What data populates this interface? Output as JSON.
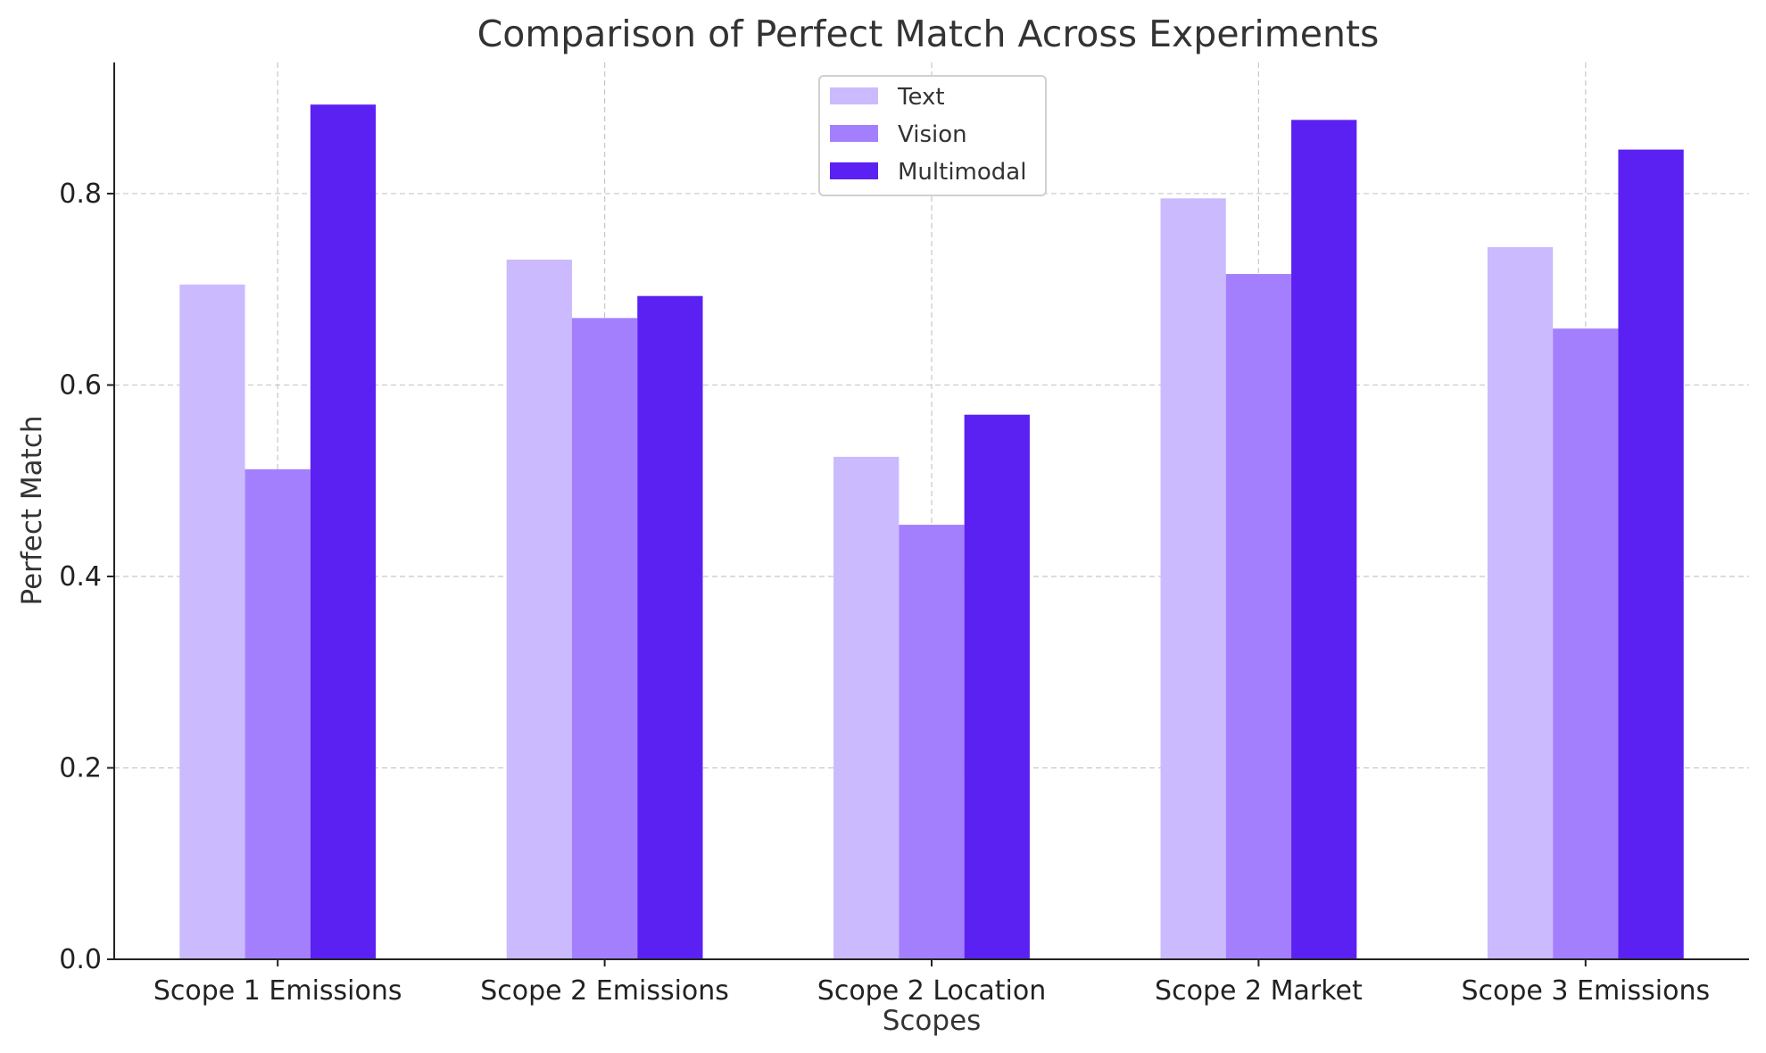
{
  "chart_data": {
    "type": "bar",
    "title": "Comparison of Perfect Match Across Experiments",
    "xlabel": "Scopes",
    "ylabel": "Perfect Match",
    "categories": [
      "Scope 1 Emissions",
      "Scope 2 Emissions",
      "Scope 2 Location",
      "Scope 2 Market",
      "Scope 3 Emissions"
    ],
    "series": [
      {
        "name": "Text",
        "color": "#cbbafe",
        "values": [
          0.705,
          0.731,
          0.525,
          0.795,
          0.744
        ]
      },
      {
        "name": "Vision",
        "color": "#a47ffd",
        "values": [
          0.512,
          0.67,
          0.454,
          0.716,
          0.659
        ]
      },
      {
        "name": "Multimodal",
        "color": "#5b21f2",
        "values": [
          0.893,
          0.693,
          0.569,
          0.877,
          0.846
        ]
      }
    ],
    "ylim": [
      0,
      0.937
    ],
    "yticks": [
      "0.0",
      "0.2",
      "0.4",
      "0.6",
      "0.8"
    ],
    "grid": true,
    "legend_position": "top-center"
  }
}
